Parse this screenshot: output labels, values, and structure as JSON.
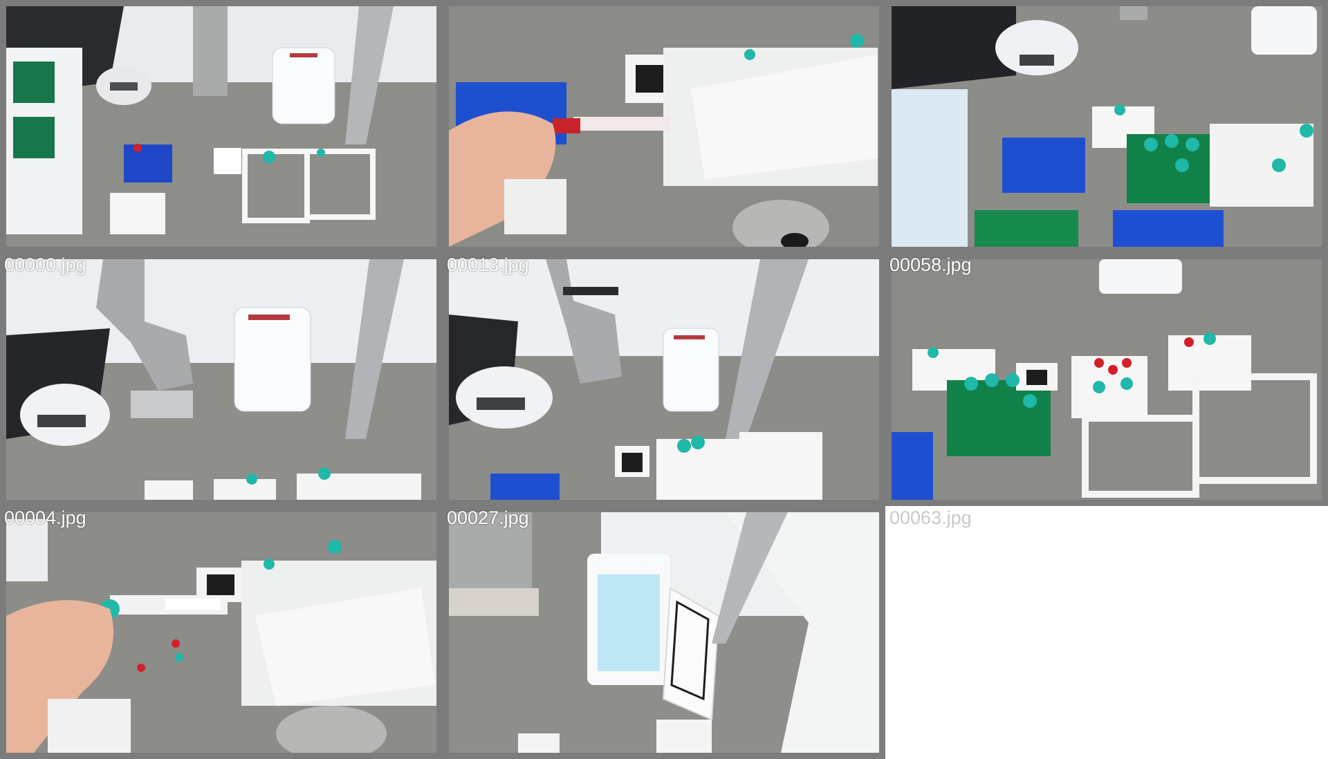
{
  "gallery": {
    "tiles": [
      {
        "caption": "00000.jpg",
        "scene": "workspace-overview"
      },
      {
        "caption": "00013.jpg",
        "scene": "hand-holding-red-tube"
      },
      {
        "caption": "00058.jpg",
        "scene": "blue-and-green-racks"
      },
      {
        "caption": "00004.jpg",
        "scene": "robot-arm-fridge"
      },
      {
        "caption": "00027.jpg",
        "scene": "robot-arm-fridge-closer"
      },
      {
        "caption": "00063.jpg",
        "scene": "racks-with-tubes"
      },
      {
        "caption": "",
        "scene": "hand-holding-teal-tube"
      },
      {
        "caption": "",
        "scene": "open-mini-fridge"
      }
    ],
    "empty_slot_caption": ""
  },
  "colors": {
    "frame_border": "#7c7c7c",
    "caption_text": "#ffffff",
    "tube_cap_teal": "#1fb8a9",
    "rack_blue": "#1e4fcf",
    "rack_green": "#0f8a4a",
    "tube_cap_red": "#d41f2a"
  }
}
